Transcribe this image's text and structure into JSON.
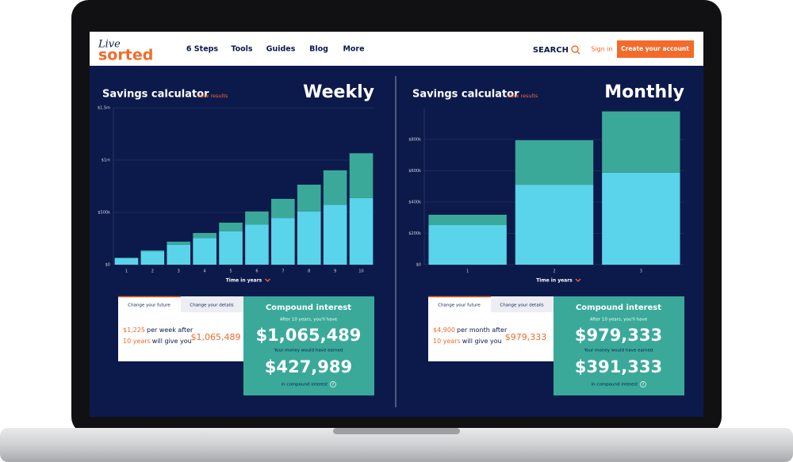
{
  "nav": {
    "logo_top": "Live",
    "logo_bottom": "sorted",
    "links": [
      "6 Steps",
      "Tools",
      "Guides",
      "Blog",
      "More"
    ],
    "search": "SEARCH",
    "sign_in": "Sign in",
    "cta": "Create your account"
  },
  "panels": [
    {
      "title": "Savings calculator",
      "link": "View results",
      "period": "Weekly",
      "tabs": [
        "Change your future",
        "Change your details"
      ],
      "summary": {
        "amount": "$1,225",
        "text1": "per week after",
        "years": "10 years",
        "text2": "will give you",
        "total": "$1,065,489"
      },
      "result": {
        "title": "Compound interest",
        "subtitle": "After 10 years, you'll have",
        "total": "$1,065,489",
        "earned_label": "Your money would have earned",
        "interest": "$427,989",
        "interest_label": "in compound interest",
        "help": "?"
      }
    },
    {
      "title": "Savings calculator",
      "link": "View results",
      "period": "Monthly",
      "tabs": [
        "Change your future",
        "Change your details"
      ],
      "summary": {
        "amount": "$4,900",
        "text1": "per month after",
        "years": "10 years",
        "text2": "will give you",
        "total": "$979,333"
      },
      "result": {
        "title": "Compound interest",
        "subtitle": "After 10 years, you'll have",
        "total": "$979,333",
        "earned_label": "Your money would have earned",
        "interest": "$391,333",
        "interest_label": "in compound interest",
        "help": "?"
      }
    }
  ],
  "chart_data": [
    {
      "type": "bar",
      "stacked": true,
      "x_label": "Time in years",
      "categories": [
        "1",
        "2",
        "3",
        "4",
        "5",
        "6",
        "7",
        "8",
        "9",
        "10"
      ],
      "series": [
        {
          "color": "#5ad4ea",
          "values": [
            63750,
            127500,
            191250,
            255000,
            318750,
            382500,
            446250,
            510000,
            573750,
            637500
          ]
        },
        {
          "color": "#3aa99a",
          "values": [
            2000,
            9000,
            29000,
            48000,
            83000,
            126000,
            183000,
            255000,
            328000,
            427989
          ]
        }
      ],
      "ylim": [
        0,
        1500000
      ],
      "yticks": [
        {
          "value": 0,
          "label": "$0"
        },
        {
          "value": 500000,
          "label": "$500k"
        },
        {
          "value": 1000000,
          "label": "$1m"
        },
        {
          "value": 1500000,
          "label": "$1.5m"
        }
      ],
      "grid": true
    },
    {
      "type": "bar",
      "stacked": true,
      "x_label": "Time in years",
      "categories": [
        "1",
        "2",
        "3"
      ],
      "series": [
        {
          "color": "#5ad4ea",
          "values": [
            253000,
            511000,
            588000
          ]
        },
        {
          "color": "#3aa99a",
          "values": [
            66000,
            284000,
            391333
          ]
        }
      ],
      "ylim": [
        0,
        1000000
      ],
      "yticks": [
        {
          "value": 0,
          "label": "$0"
        },
        {
          "value": 200000,
          "label": "$200k"
        },
        {
          "value": 400000,
          "label": "$400k"
        },
        {
          "value": 600000,
          "label": "$600k"
        },
        {
          "value": 800000,
          "label": "$800k"
        }
      ],
      "grid": true
    }
  ]
}
